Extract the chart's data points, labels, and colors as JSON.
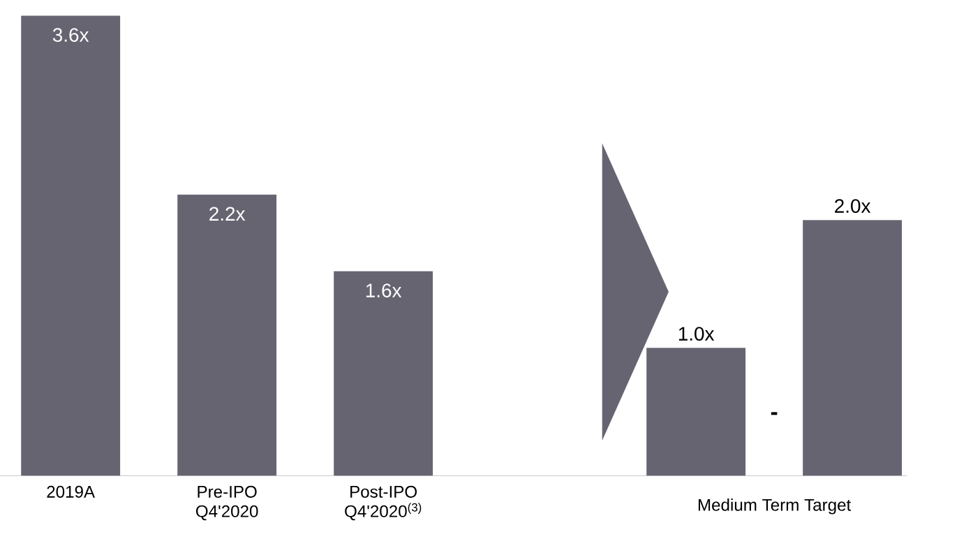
{
  "chart_data": {
    "type": "bar",
    "categories": [
      "2019A",
      "Pre-IPO Q4'2020",
      "Post-IPO Q4'2020$^{(3)}$",
      null,
      null,
      null
    ],
    "values": [
      3.6,
      2.2,
      1.6,
      null,
      1.0,
      2.0
    ],
    "value_labels": [
      "3.6x",
      "2.2x",
      "1.6x",
      null,
      "1.0x",
      "2.0x"
    ],
    "color": "#676472",
    "annotations": [
      "Medium Term Target",
      "-"
    ]
  }
}
